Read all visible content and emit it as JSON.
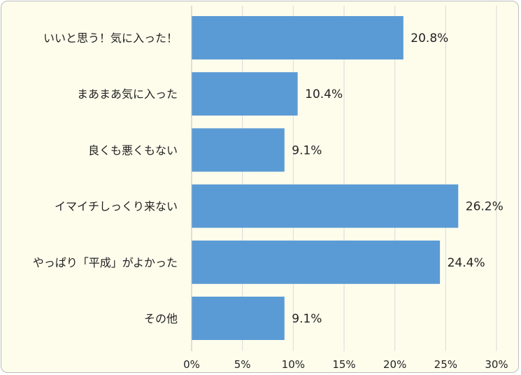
{
  "chart_data": {
    "type": "bar",
    "orientation": "horizontal",
    "categories": [
      "いいと思う！気に入った！",
      "まあまあ気に入った",
      "良くも悪くもない",
      "イマイチしっくり来ない",
      "やっぱり「平成」がよかった",
      "その他"
    ],
    "values": [
      20.8,
      10.4,
      9.1,
      26.2,
      24.4,
      9.1
    ],
    "data_labels": [
      "20.8%",
      "10.4%",
      "9.1%",
      "26.2%",
      "24.4%",
      "9.1%"
    ],
    "x_ticks": [
      "0%",
      "5%",
      "10%",
      "15%",
      "20%",
      "25%",
      "30%"
    ],
    "xlim": [
      0,
      30
    ],
    "grid": true,
    "bar_color": "#5b9bd5",
    "background_color": "#fefdec"
  }
}
